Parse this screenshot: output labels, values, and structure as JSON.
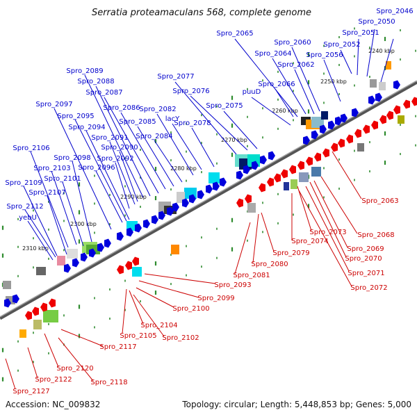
{
  "title": "Serratia proteamaculans 568, complete genome",
  "accession": "Accession: NC_009832",
  "summary": "Topology: circular; Length: 5,448,853 bp; Genes: 5,000",
  "colors": {
    "forward_arrow": "#0000dd",
    "reverse_arrow": "#ee0000",
    "forward_label": "#0000cc",
    "reverse_label": "#cc0000",
    "backbone": "#888888",
    "tick_dots": "#2e8b2e"
  },
  "kbp_markers": [
    "2240 kbp",
    "2250 kbp",
    "2260 kbp",
    "2270 kbp",
    "2280 kbp",
    "2290 kbp",
    "2300 kbp",
    "2310 kbp"
  ],
  "forward_genes": [
    "Spro_2046",
    "Spro_2050",
    "Spro_2051",
    "Spro_2052",
    "Spro_2056",
    "Spro_2060",
    "Spro_2062",
    "Spro_2064",
    "Spro_2065",
    "Spro_2066",
    "puuD",
    "Spro_2075",
    "Spro_2076",
    "Spro_2077",
    "Spro_2078",
    "lacY",
    "Spro_2082",
    "Spro_2084",
    "Spro_2085",
    "Spro_2086",
    "Spro_2087",
    "Spro_2088",
    "Spro_2089",
    "Spro_2090",
    "Spro_2091",
    "Spro_2092",
    "Spro_2094",
    "Spro_2095",
    "Spro_2096",
    "Spro_2097",
    "Spro_2098",
    "Spro_2101",
    "Spro_2103",
    "Spro_2106",
    "Spro_2107",
    "Spro_2109",
    "Spro_2112",
    "yebU"
  ],
  "reverse_genes": [
    "Spro_2063",
    "Spro_2068",
    "Spro_2069",
    "Spro_2070",
    "Spro_2071",
    "Spro_2072",
    "Spro_2073",
    "Spro_2074",
    "Spro_2079",
    "Spro_2080",
    "Spro_2081",
    "Spro_2093",
    "Spro_2099",
    "Spro_2100",
    "Spro_2102",
    "Spro_2104",
    "Spro_2105",
    "Spro_2117",
    "Spro_2118",
    "Spro_2120",
    "Spro_2122",
    "Spro_2127"
  ]
}
